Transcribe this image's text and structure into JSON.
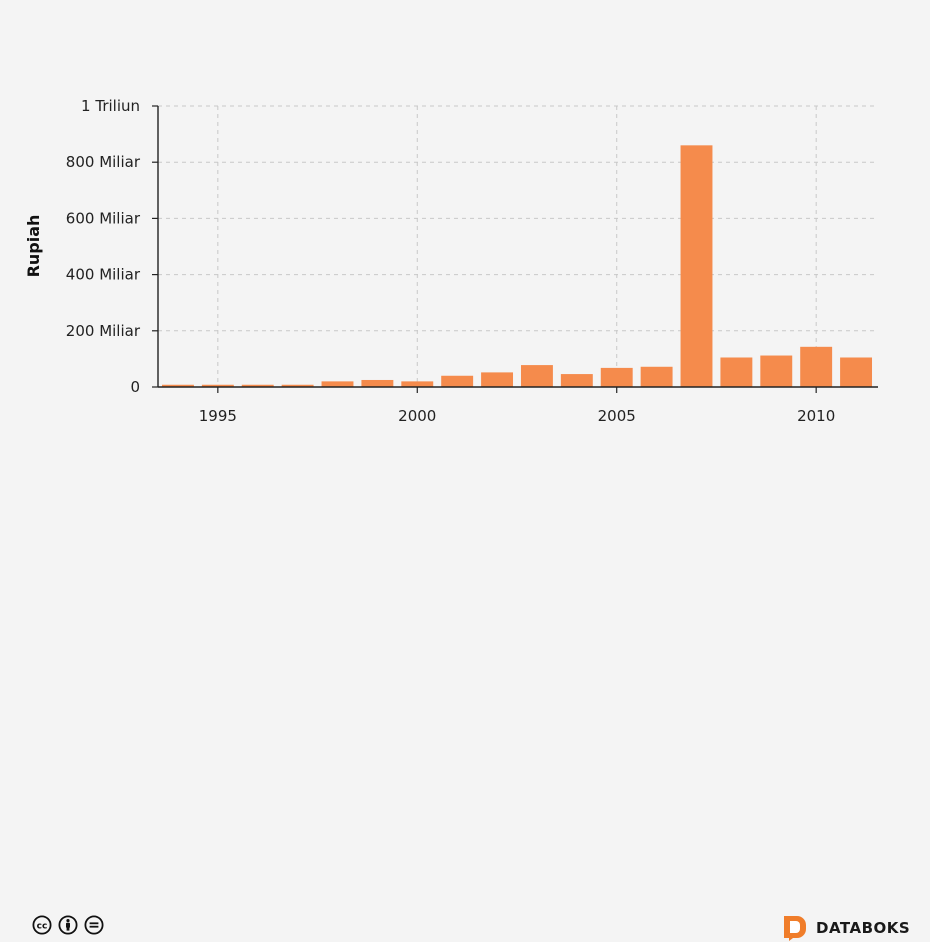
{
  "chart_data": {
    "type": "bar",
    "ylabel": "Rupiah",
    "xlabel": "",
    "x": [
      1994,
      1995,
      1996,
      1997,
      1998,
      1999,
      2000,
      2001,
      2002,
      2003,
      2004,
      2005,
      2006,
      2007,
      2008,
      2009,
      2010,
      2011
    ],
    "values": [
      8,
      8,
      8,
      8,
      20,
      25,
      20,
      40,
      52,
      78,
      46,
      68,
      72,
      860,
      105,
      112,
      143,
      105
    ],
    "value_unit": "Miliar",
    "ylim": [
      0,
      1000
    ],
    "y_ticks": [
      {
        "value": 0,
        "label": "0"
      },
      {
        "value": 200,
        "label": "200 Miliar"
      },
      {
        "value": 400,
        "label": "400 Miliar"
      },
      {
        "value": 600,
        "label": "600 Miliar"
      },
      {
        "value": 800,
        "label": "800 Miliar"
      },
      {
        "value": 1000,
        "label": "1 Triliun"
      }
    ],
    "x_ticks": [
      {
        "value": 1995,
        "label": "1995"
      },
      {
        "value": 2000,
        "label": "2000"
      },
      {
        "value": 2005,
        "label": "2005"
      },
      {
        "value": 2010,
        "label": "2010"
      }
    ],
    "xlim": [
      1993.5,
      2011.5
    ],
    "grid": true,
    "bar_color": "#f58b4c"
  },
  "footer": {
    "brand": "DATABOKS",
    "license_icons": [
      "cc-icon",
      "by-icon",
      "nd-icon"
    ]
  }
}
